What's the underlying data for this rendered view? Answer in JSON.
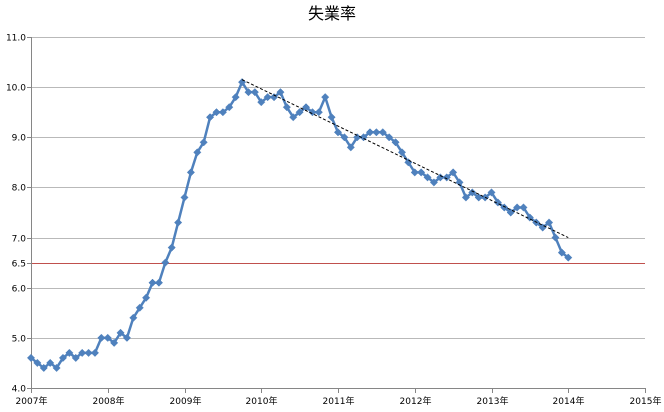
{
  "chart_data": {
    "type": "line",
    "title": "失業率",
    "xlabel": "",
    "ylabel": "",
    "xlim": [
      "2007-01",
      "2015-01"
    ],
    "ylim": [
      4.0,
      11.0
    ],
    "y_ticks": [
      "4.0",
      "5.0",
      "6.0",
      "6.5",
      "7.0",
      "8.0",
      "9.0",
      "10.0",
      "11.0"
    ],
    "x_tick_labels": [
      "2007年",
      "2008年",
      "2009年",
      "2010年",
      "2011年",
      "2012年",
      "2013年",
      "2014年",
      "2015年"
    ],
    "grid": "horizontal",
    "legend": "none",
    "x": [
      "2007-01",
      "2007-02",
      "2007-03",
      "2007-04",
      "2007-05",
      "2007-06",
      "2007-07",
      "2007-08",
      "2007-09",
      "2007-10",
      "2007-11",
      "2007-12",
      "2008-01",
      "2008-02",
      "2008-03",
      "2008-04",
      "2008-05",
      "2008-06",
      "2008-07",
      "2008-08",
      "2008-09",
      "2008-10",
      "2008-11",
      "2008-12",
      "2009-01",
      "2009-02",
      "2009-03",
      "2009-04",
      "2009-05",
      "2009-06",
      "2009-07",
      "2009-08",
      "2009-09",
      "2009-10",
      "2009-11",
      "2009-12",
      "2010-01",
      "2010-02",
      "2010-03",
      "2010-04",
      "2010-05",
      "2010-06",
      "2010-07",
      "2010-08",
      "2010-09",
      "2010-10",
      "2010-11",
      "2010-12",
      "2011-01",
      "2011-02",
      "2011-03",
      "2011-04",
      "2011-05",
      "2011-06",
      "2011-07",
      "2011-08",
      "2011-09",
      "2011-10",
      "2011-11",
      "2011-12",
      "2012-01",
      "2012-02",
      "2012-03",
      "2012-04",
      "2012-05",
      "2012-06",
      "2012-07",
      "2012-08",
      "2012-09",
      "2012-10",
      "2012-11",
      "2012-12",
      "2013-01",
      "2013-02",
      "2013-03",
      "2013-04",
      "2013-05",
      "2013-06",
      "2013-07",
      "2013-08",
      "2013-09",
      "2013-10",
      "2013-11",
      "2013-12",
      "2014-01"
    ],
    "series": [
      {
        "values": [
          4.6,
          4.5,
          4.4,
          4.5,
          4.4,
          4.6,
          4.7,
          4.6,
          4.7,
          4.7,
          4.7,
          5.0,
          5.0,
          4.9,
          5.1,
          5.0,
          5.4,
          5.6,
          5.8,
          6.1,
          6.1,
          6.5,
          6.8,
          7.3,
          7.8,
          8.3,
          8.7,
          8.9,
          9.4,
          9.5,
          9.5,
          9.6,
          9.8,
          10.1,
          9.9,
          9.9,
          9.7,
          9.8,
          9.8,
          9.9,
          9.6,
          9.4,
          9.5,
          9.6,
          9.5,
          9.5,
          9.8,
          9.4,
          9.1,
          9.0,
          8.8,
          9.0,
          9.0,
          9.1,
          9.1,
          9.1,
          9.0,
          8.9,
          8.7,
          8.5,
          8.3,
          8.3,
          8.2,
          8.1,
          8.2,
          8.2,
          8.3,
          8.1,
          7.8,
          7.9,
          7.8,
          7.8,
          7.9,
          7.7,
          7.6,
          7.5,
          7.6,
          7.6,
          7.4,
          7.3,
          7.2,
          7.3,
          7.0,
          6.7,
          6.6
        ]
      }
    ],
    "reference_line": {
      "y": 6.5
    },
    "trendline": {
      "style": "dashed",
      "from": {
        "x": "2009-10",
        "y": 10.15
      },
      "to": {
        "x": "2014-01",
        "y": 7.0
      }
    },
    "colors": {
      "series": "#4F81BD",
      "reference_line": "#C0504D",
      "trendline": "#000000",
      "grid": "#B9B9B9",
      "axis": "#868686"
    }
  }
}
